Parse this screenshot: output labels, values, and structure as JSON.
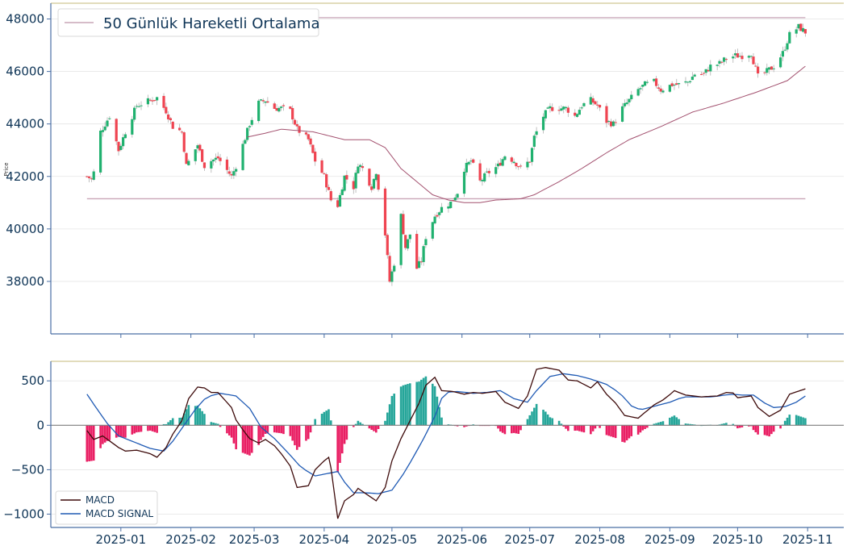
{
  "chart_data": [
    {
      "type": "candlestick",
      "ylabel": "Price",
      "ylim": [
        36000,
        48600
      ],
      "y_ticks": [
        {
          "value": 38000,
          "label": "38000"
        },
        {
          "value": 40000,
          "label": "40000"
        },
        {
          "value": 42000,
          "label": "42000"
        },
        {
          "value": 44000,
          "label": "44000"
        },
        {
          "value": 46000,
          "label": "46000"
        },
        {
          "value": 48000,
          "label": "48000"
        }
      ],
      "grid": true,
      "legend": {
        "placement": "top-left",
        "entries": [
          {
            "name": "50 Günlük Hareketli Ortalama",
            "color": "#c9a5b7"
          }
        ]
      },
      "horizontal_lines": [
        48050,
        41150
      ],
      "colors": {
        "up": "#20b16f",
        "down": "#ef4451",
        "wick": "#b0b0b0",
        "ma": "#a3516f",
        "hline": "#c9a5b7",
        "axis": "#4a6fa5",
        "topline": "#d9d1a6"
      },
      "series": {
        "close_anchors": [
          [
            "2024-12-17",
            42000
          ],
          [
            "2024-12-19",
            41900
          ],
          [
            "2024-12-20",
            42150
          ],
          [
            "2024-12-23",
            43700
          ],
          [
            "2024-12-27",
            44300
          ],
          [
            "2024-12-31",
            43000
          ],
          [
            "2025-01-03",
            43700
          ],
          [
            "2025-01-08",
            44700
          ],
          [
            "2025-01-14",
            44900
          ],
          [
            "2025-01-17",
            45000
          ],
          [
            "2025-01-21",
            44500
          ],
          [
            "2025-01-24",
            43900
          ],
          [
            "2025-01-28",
            43700
          ],
          [
            "2025-01-30",
            42400
          ],
          [
            "2025-02-04",
            43200
          ],
          [
            "2025-02-07",
            42400
          ],
          [
            "2025-02-10",
            42600
          ],
          [
            "2025-02-13",
            42700
          ],
          [
            "2025-02-19",
            42000
          ],
          [
            "2025-02-21",
            42400
          ],
          [
            "2025-02-24",
            43200
          ],
          [
            "2025-02-27",
            44000
          ],
          [
            "2025-03-03",
            44800
          ],
          [
            "2025-03-06",
            44900
          ],
          [
            "2025-03-10",
            44600
          ],
          [
            "2025-03-13",
            44600
          ],
          [
            "2025-03-17",
            44500
          ],
          [
            "2025-03-20",
            43800
          ],
          [
            "2025-03-25",
            43400
          ],
          [
            "2025-03-28",
            42600
          ],
          [
            "2025-04-01",
            42000
          ],
          [
            "2025-04-04",
            41100
          ],
          [
            "2025-04-07",
            40900
          ],
          [
            "2025-04-10",
            42000
          ],
          [
            "2025-04-14",
            41600
          ],
          [
            "2025-04-16",
            42500
          ],
          [
            "2025-04-18",
            42300
          ],
          [
            "2025-04-22",
            41600
          ],
          [
            "2025-04-24",
            42200
          ],
          [
            "2025-04-28",
            39800
          ],
          [
            "2025-04-30",
            38000
          ],
          [
            "2025-05-02",
            38700
          ],
          [
            "2025-05-05",
            40500
          ],
          [
            "2025-05-07",
            39300
          ],
          [
            "2025-05-09",
            39800
          ],
          [
            "2025-05-12",
            38500
          ],
          [
            "2025-05-14",
            38800
          ],
          [
            "2025-05-16",
            39700
          ],
          [
            "2025-05-20",
            40500
          ],
          [
            "2025-05-23",
            40800
          ],
          [
            "2025-05-27",
            41000
          ],
          [
            "2025-05-30",
            41400
          ],
          [
            "2025-06-02",
            42300
          ],
          [
            "2025-06-05",
            42600
          ],
          [
            "2025-06-09",
            41800
          ],
          [
            "2025-06-12",
            42100
          ],
          [
            "2025-06-17",
            42400
          ],
          [
            "2025-06-20",
            42800
          ],
          [
            "2025-06-24",
            42600
          ],
          [
            "2025-06-27",
            42300
          ],
          [
            "2025-07-01",
            42600
          ],
          [
            "2025-07-03",
            43500
          ],
          [
            "2025-07-07",
            44300
          ],
          [
            "2025-07-10",
            44600
          ],
          [
            "2025-07-14",
            44600
          ],
          [
            "2025-07-17",
            44600
          ],
          [
            "2025-07-21",
            44300
          ],
          [
            "2025-07-24",
            44700
          ],
          [
            "2025-07-28",
            44900
          ],
          [
            "2025-07-31",
            44700
          ],
          [
            "2025-08-04",
            44100
          ],
          [
            "2025-08-07",
            44000
          ],
          [
            "2025-08-11",
            44600
          ],
          [
            "2025-08-14",
            44900
          ],
          [
            "2025-08-18",
            45300
          ],
          [
            "2025-08-21",
            45500
          ],
          [
            "2025-08-25",
            45600
          ],
          [
            "2025-08-28",
            45300
          ],
          [
            "2025-09-02",
            45500
          ],
          [
            "2025-09-05",
            45500
          ],
          [
            "2025-09-09",
            45600
          ],
          [
            "2025-09-12",
            45900
          ],
          [
            "2025-09-16",
            45900
          ],
          [
            "2025-09-19",
            46200
          ],
          [
            "2025-09-23",
            46300
          ],
          [
            "2025-09-26",
            46500
          ],
          [
            "2025-09-30",
            46600
          ],
          [
            "2025-10-03",
            46600
          ],
          [
            "2025-10-07",
            46700
          ],
          [
            "2025-10-10",
            45800
          ],
          [
            "2025-10-14",
            46000
          ],
          [
            "2025-10-17",
            46200
          ],
          [
            "2025-10-21",
            46700
          ],
          [
            "2025-10-24",
            47400
          ],
          [
            "2025-10-28",
            47700
          ],
          [
            "2025-10-31",
            47500
          ]
        ],
        "ma50_anchors": [
          [
            "2025-02-26",
            43500
          ],
          [
            "2025-03-06",
            43650
          ],
          [
            "2025-03-13",
            43800
          ],
          [
            "2025-03-27",
            43700
          ],
          [
            "2025-04-10",
            43400
          ],
          [
            "2025-04-21",
            43400
          ],
          [
            "2025-04-28",
            43100
          ],
          [
            "2025-05-05",
            42300
          ],
          [
            "2025-05-12",
            41800
          ],
          [
            "2025-05-19",
            41300
          ],
          [
            "2025-05-26",
            41100
          ],
          [
            "2025-06-02",
            41000
          ],
          [
            "2025-06-09",
            41000
          ],
          [
            "2025-06-16",
            41100
          ],
          [
            "2025-06-27",
            41150
          ],
          [
            "2025-07-03",
            41300
          ],
          [
            "2025-07-14",
            41800
          ],
          [
            "2025-07-24",
            42300
          ],
          [
            "2025-08-04",
            42900
          ],
          [
            "2025-08-14",
            43400
          ],
          [
            "2025-08-28",
            43900
          ],
          [
            "2025-09-11",
            44450
          ],
          [
            "2025-09-25",
            44800
          ],
          [
            "2025-10-09",
            45200
          ],
          [
            "2025-10-23",
            45650
          ],
          [
            "2025-10-31",
            46200
          ]
        ]
      }
    },
    {
      "type": "macd",
      "ylim": [
        -1150,
        720
      ],
      "y_ticks": [
        {
          "value": -1000,
          "label": "−1000"
        },
        {
          "value": -500,
          "label": "−500"
        },
        {
          "value": 0,
          "label": "0"
        },
        {
          "value": 500,
          "label": "500"
        }
      ],
      "grid": true,
      "legend": {
        "placement": "bottom-left",
        "entries": [
          {
            "name": "MACD",
            "color": "#3d0a0a"
          },
          {
            "name": "MACD SIGNAL",
            "color": "#1f5ab4"
          }
        ]
      },
      "colors": {
        "macd": "#3d0a0a",
        "signal": "#1f5ab4",
        "hist_pos": "#26a69a",
        "hist_neg": "#e91e63",
        "zero": "#808080",
        "topline": "#d9d1a6"
      },
      "macd_anchors": [
        [
          "2024-12-17",
          -60
        ],
        [
          "2024-12-20",
          -160
        ],
        [
          "2024-12-24",
          -120
        ],
        [
          "2024-12-31",
          -250
        ],
        [
          "2025-01-03",
          -290
        ],
        [
          "2025-01-08",
          -280
        ],
        [
          "2025-01-14",
          -320
        ],
        [
          "2025-01-17",
          -360
        ],
        [
          "2025-01-21",
          -250
        ],
        [
          "2025-01-24",
          -100
        ],
        [
          "2025-01-28",
          50
        ],
        [
          "2025-01-31",
          300
        ],
        [
          "2025-02-04",
          430
        ],
        [
          "2025-02-07",
          420
        ],
        [
          "2025-02-10",
          370
        ],
        [
          "2025-02-13",
          370
        ],
        [
          "2025-02-19",
          200
        ],
        [
          "2025-02-21",
          60
        ],
        [
          "2025-02-24",
          -50
        ],
        [
          "2025-02-27",
          -150
        ],
        [
          "2025-03-03",
          -200
        ],
        [
          "2025-03-06",
          -160
        ],
        [
          "2025-03-10",
          -230
        ],
        [
          "2025-03-13",
          -320
        ],
        [
          "2025-03-17",
          -460
        ],
        [
          "2025-03-20",
          -700
        ],
        [
          "2025-03-25",
          -680
        ],
        [
          "2025-03-28",
          -500
        ],
        [
          "2025-04-01",
          -400
        ],
        [
          "2025-04-03",
          -360
        ],
        [
          "2025-04-05",
          -600
        ],
        [
          "2025-04-07",
          -1050
        ],
        [
          "2025-04-10",
          -850
        ],
        [
          "2025-04-14",
          -780
        ],
        [
          "2025-04-16",
          -710
        ],
        [
          "2025-04-20",
          -780
        ],
        [
          "2025-04-24",
          -850
        ],
        [
          "2025-04-28",
          -700
        ],
        [
          "2025-05-01",
          -400
        ],
        [
          "2025-05-05",
          -150
        ],
        [
          "2025-05-09",
          50
        ],
        [
          "2025-05-13",
          250
        ],
        [
          "2025-05-16",
          450
        ],
        [
          "2025-05-20",
          540
        ],
        [
          "2025-05-23",
          390
        ],
        [
          "2025-05-28",
          380
        ],
        [
          "2025-06-02",
          350
        ],
        [
          "2025-06-06",
          370
        ],
        [
          "2025-06-10",
          360
        ],
        [
          "2025-06-16",
          380
        ],
        [
          "2025-06-20",
          260
        ],
        [
          "2025-06-26",
          190
        ],
        [
          "2025-06-30",
          330
        ],
        [
          "2025-07-04",
          630
        ],
        [
          "2025-07-08",
          650
        ],
        [
          "2025-07-14",
          620
        ],
        [
          "2025-07-18",
          510
        ],
        [
          "2025-07-22",
          500
        ],
        [
          "2025-07-28",
          420
        ],
        [
          "2025-07-31",
          490
        ],
        [
          "2025-08-04",
          350
        ],
        [
          "2025-08-08",
          250
        ],
        [
          "2025-08-12",
          110
        ],
        [
          "2025-08-18",
          80
        ],
        [
          "2025-08-25",
          230
        ],
        [
          "2025-08-30",
          300
        ],
        [
          "2025-09-03",
          390
        ],
        [
          "2025-09-08",
          340
        ],
        [
          "2025-09-15",
          320
        ],
        [
          "2025-09-22",
          330
        ],
        [
          "2025-09-28",
          390
        ],
        [
          "2025-10-01",
          310
        ],
        [
          "2025-10-07",
          330
        ],
        [
          "2025-10-10",
          200
        ],
        [
          "2025-10-15",
          100
        ],
        [
          "2025-10-20",
          170
        ],
        [
          "2025-10-24",
          350
        ],
        [
          "2025-10-31",
          410
        ]
      ],
      "signal_anchors": [
        [
          "2024-12-17",
          350
        ],
        [
          "2024-12-21",
          200
        ],
        [
          "2024-12-26",
          20
        ],
        [
          "2024-12-31",
          -120
        ],
        [
          "2025-01-07",
          -190
        ],
        [
          "2025-01-14",
          -260
        ],
        [
          "2025-01-20",
          -290
        ],
        [
          "2025-01-24",
          -180
        ],
        [
          "2025-01-29",
          0
        ],
        [
          "2025-02-03",
          180
        ],
        [
          "2025-02-08",
          320
        ],
        [
          "2025-02-14",
          360
        ],
        [
          "2025-02-21",
          330
        ],
        [
          "2025-02-27",
          190
        ],
        [
          "2025-03-04",
          -20
        ],
        [
          "2025-03-10",
          -150
        ],
        [
          "2025-03-16",
          -310
        ],
        [
          "2025-03-22",
          -480
        ],
        [
          "2025-03-28",
          -570
        ],
        [
          "2025-04-03",
          -540
        ],
        [
          "2025-04-07",
          -520
        ],
        [
          "2025-04-10",
          -640
        ],
        [
          "2025-04-14",
          -760
        ],
        [
          "2025-04-20",
          -760
        ],
        [
          "2025-04-25",
          -770
        ],
        [
          "2025-05-01",
          -730
        ],
        [
          "2025-05-06",
          -550
        ],
        [
          "2025-05-10",
          -380
        ],
        [
          "2025-05-15",
          -150
        ],
        [
          "2025-05-20",
          100
        ],
        [
          "2025-05-24",
          370
        ],
        [
          "2025-05-30",
          380
        ],
        [
          "2025-06-06",
          360
        ],
        [
          "2025-06-12",
          370
        ],
        [
          "2025-06-18",
          390
        ],
        [
          "2025-06-24",
          300
        ],
        [
          "2025-06-30",
          260
        ],
        [
          "2025-07-04",
          390
        ],
        [
          "2025-07-10",
          550
        ],
        [
          "2025-07-16",
          580
        ],
        [
          "2025-07-22",
          560
        ],
        [
          "2025-07-28",
          520
        ],
        [
          "2025-08-04",
          460
        ],
        [
          "2025-08-10",
          360
        ],
        [
          "2025-08-16",
          190
        ],
        [
          "2025-08-20",
          180
        ],
        [
          "2025-08-26",
          220
        ],
        [
          "2025-09-01",
          260
        ],
        [
          "2025-09-07",
          320
        ],
        [
          "2025-09-14",
          320
        ],
        [
          "2025-09-20",
          320
        ],
        [
          "2025-09-28",
          350
        ],
        [
          "2025-10-03",
          340
        ],
        [
          "2025-10-08",
          340
        ],
        [
          "2025-10-13",
          250
        ],
        [
          "2025-10-17",
          200
        ],
        [
          "2025-10-22",
          210
        ],
        [
          "2025-10-27",
          260
        ],
        [
          "2025-10-31",
          330
        ]
      ]
    }
  ],
  "x_axis": {
    "ticks": [
      {
        "date": "2025-01-01",
        "label": "2025-01"
      },
      {
        "date": "2025-02-01",
        "label": "2025-02"
      },
      {
        "date": "2025-03-01",
        "label": "2025-03"
      },
      {
        "date": "2025-04-01",
        "label": "2025-04"
      },
      {
        "date": "2025-05-01",
        "label": "2025-05"
      },
      {
        "date": "2025-06-01",
        "label": "2025-06"
      },
      {
        "date": "2025-07-01",
        "label": "2025-07"
      },
      {
        "date": "2025-08-01",
        "label": "2025-08"
      },
      {
        "date": "2025-09-01",
        "label": "2025-09"
      },
      {
        "date": "2025-10-01",
        "label": "2025-10"
      },
      {
        "date": "2025-11-01",
        "label": "2025-11"
      }
    ]
  }
}
